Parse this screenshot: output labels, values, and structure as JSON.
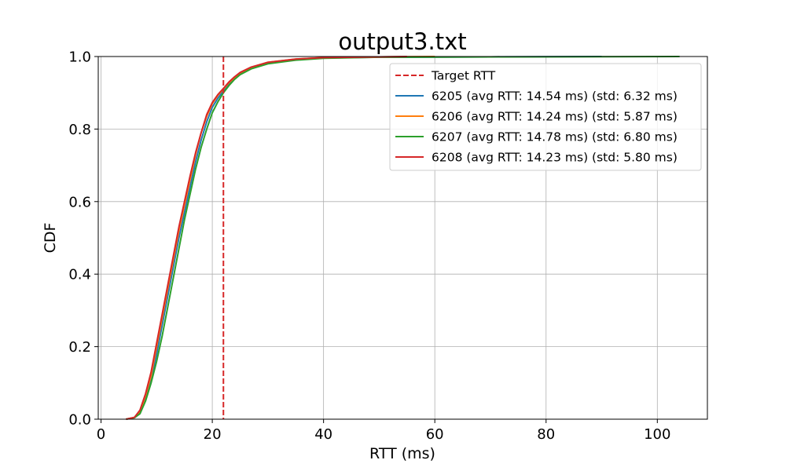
{
  "chart_data": {
    "type": "line",
    "title": "output3.txt",
    "xlabel": "RTT (ms)",
    "ylabel": "CDF",
    "xlim": [
      -0.5,
      109
    ],
    "ylim": [
      0,
      1.0
    ],
    "xticks": [
      "0",
      "20",
      "40",
      "60",
      "80",
      "100"
    ],
    "yticks": [
      "0.0",
      "0.2",
      "0.4",
      "0.6",
      "0.8",
      "1.0"
    ],
    "grid": true,
    "legend_position": "upper right",
    "target_rtt": {
      "name": "Target RTT",
      "x": 22,
      "color": "#d62728",
      "style": "dashed"
    },
    "series": [
      {
        "name": "6205 (avg RTT: 14.54 ms) (std: 6.32 ms)",
        "color": "#1f77b4",
        "points": [
          [
            4.5,
            0
          ],
          [
            6,
            0.005
          ],
          [
            7,
            0.02
          ],
          [
            8,
            0.06
          ],
          [
            9,
            0.11
          ],
          [
            10,
            0.18
          ],
          [
            11,
            0.26
          ],
          [
            12,
            0.34
          ],
          [
            13,
            0.42
          ],
          [
            14,
            0.5
          ],
          [
            15,
            0.57
          ],
          [
            16,
            0.64
          ],
          [
            17,
            0.71
          ],
          [
            18,
            0.77
          ],
          [
            19,
            0.82
          ],
          [
            20,
            0.86
          ],
          [
            21,
            0.885
          ],
          [
            22,
            0.905
          ],
          [
            23,
            0.925
          ],
          [
            24,
            0.94
          ],
          [
            25,
            0.952
          ],
          [
            27,
            0.968
          ],
          [
            30,
            0.982
          ],
          [
            35,
            0.992
          ],
          [
            40,
            0.996
          ],
          [
            50,
            0.998
          ],
          [
            70,
            0.999
          ],
          [
            90,
            1.0
          ]
        ]
      },
      {
        "name": "6206 (avg RTT: 14.24 ms) (std: 5.87 ms)",
        "color": "#ff7f0e",
        "points": [
          [
            4.5,
            0
          ],
          [
            6,
            0.005
          ],
          [
            7,
            0.02
          ],
          [
            8,
            0.065
          ],
          [
            9,
            0.12
          ],
          [
            10,
            0.2
          ],
          [
            11,
            0.28
          ],
          [
            12,
            0.36
          ],
          [
            13,
            0.44
          ],
          [
            14,
            0.52
          ],
          [
            15,
            0.59
          ],
          [
            16,
            0.66
          ],
          [
            17,
            0.73
          ],
          [
            18,
            0.79
          ],
          [
            19,
            0.835
          ],
          [
            20,
            0.87
          ],
          [
            21,
            0.893
          ],
          [
            22,
            0.91
          ],
          [
            23,
            0.928
          ],
          [
            24,
            0.942
          ],
          [
            25,
            0.955
          ],
          [
            27,
            0.97
          ],
          [
            30,
            0.984
          ],
          [
            35,
            0.993
          ],
          [
            40,
            0.997
          ],
          [
            50,
            0.999
          ],
          [
            60,
            1.0
          ]
        ]
      },
      {
        "name": "6207 (avg RTT: 14.78 ms) (std: 6.80 ms)",
        "color": "#2ca02c",
        "points": [
          [
            4.5,
            0
          ],
          [
            6,
            0.004
          ],
          [
            7,
            0.015
          ],
          [
            8,
            0.05
          ],
          [
            9,
            0.1
          ],
          [
            10,
            0.16
          ],
          [
            11,
            0.23
          ],
          [
            12,
            0.31
          ],
          [
            13,
            0.39
          ],
          [
            14,
            0.47
          ],
          [
            15,
            0.55
          ],
          [
            16,
            0.62
          ],
          [
            17,
            0.69
          ],
          [
            18,
            0.75
          ],
          [
            19,
            0.8
          ],
          [
            20,
            0.845
          ],
          [
            21,
            0.875
          ],
          [
            22,
            0.9
          ],
          [
            23,
            0.92
          ],
          [
            24,
            0.937
          ],
          [
            25,
            0.95
          ],
          [
            27,
            0.966
          ],
          [
            30,
            0.98
          ],
          [
            35,
            0.99
          ],
          [
            40,
            0.995
          ],
          [
            50,
            0.998
          ],
          [
            70,
            0.999
          ],
          [
            104,
            1.0
          ]
        ]
      },
      {
        "name": "6208 (avg RTT: 14.23 ms) (std: 5.80 ms)",
        "color": "#d62728",
        "points": [
          [
            4.5,
            0
          ],
          [
            6,
            0.005
          ],
          [
            7,
            0.025
          ],
          [
            8,
            0.07
          ],
          [
            9,
            0.13
          ],
          [
            10,
            0.21
          ],
          [
            11,
            0.29
          ],
          [
            12,
            0.37
          ],
          [
            13,
            0.45
          ],
          [
            14,
            0.53
          ],
          [
            15,
            0.6
          ],
          [
            16,
            0.67
          ],
          [
            17,
            0.735
          ],
          [
            18,
            0.79
          ],
          [
            19,
            0.84
          ],
          [
            20,
            0.873
          ],
          [
            21,
            0.895
          ],
          [
            22,
            0.912
          ],
          [
            23,
            0.93
          ],
          [
            24,
            0.944
          ],
          [
            25,
            0.956
          ],
          [
            27,
            0.971
          ],
          [
            30,
            0.984
          ],
          [
            35,
            0.993
          ],
          [
            40,
            0.997
          ],
          [
            50,
            0.999
          ],
          [
            55,
            1.0
          ]
        ]
      }
    ]
  }
}
